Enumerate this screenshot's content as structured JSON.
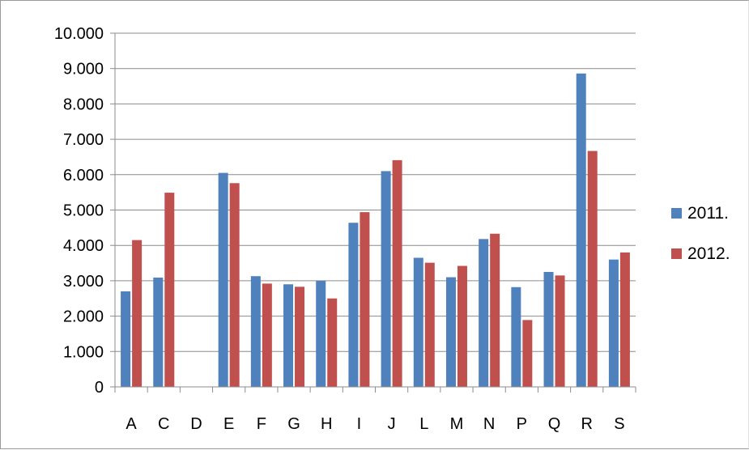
{
  "chart_data": {
    "type": "bar",
    "title": "",
    "xlabel": "",
    "ylabel": "",
    "categories": [
      "A",
      "C",
      "D",
      "E",
      "F",
      "G",
      "H",
      "I",
      "J",
      "L",
      "M",
      "N",
      "P",
      "Q",
      "R",
      "S"
    ],
    "series": [
      {
        "name": "2011.",
        "color": "#4f81bd",
        "values": [
          2700,
          3090,
          0,
          6050,
          3130,
          2900,
          3000,
          4640,
          6100,
          3650,
          3100,
          4180,
          2820,
          3250,
          8860,
          3600
        ]
      },
      {
        "name": "2012.",
        "color": "#c0504d",
        "values": [
          4150,
          5490,
          0,
          5760,
          2920,
          2830,
          2500,
          4940,
          6410,
          3510,
          3420,
          4330,
          1890,
          3150,
          6670,
          3800
        ]
      }
    ],
    "ylim": [
      0,
      10000
    ],
    "yticks": [
      0,
      1000,
      2000,
      3000,
      4000,
      5000,
      6000,
      7000,
      8000,
      9000,
      10000
    ],
    "ytick_labels": [
      "0",
      "1.000",
      "2.000",
      "3.000",
      "4.000",
      "5.000",
      "6.000",
      "7.000",
      "8.000",
      "9.000",
      "10.000"
    ],
    "grid": true,
    "legend_position": "right"
  }
}
